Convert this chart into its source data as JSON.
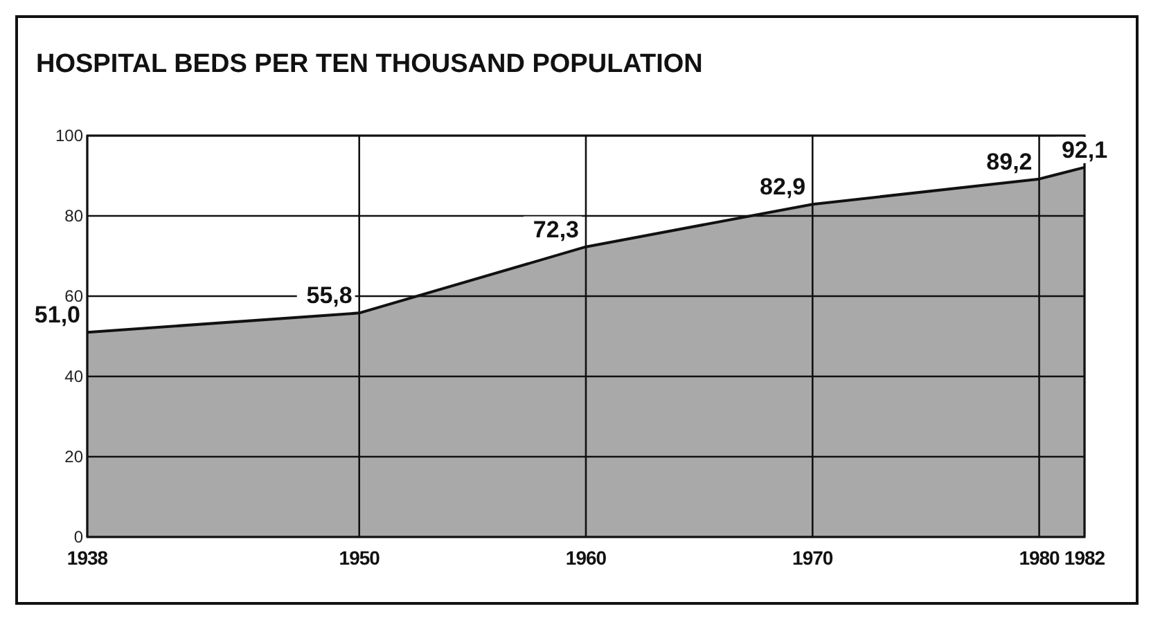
{
  "chart_data": {
    "type": "area",
    "title": "HOSPITAL BEDS PER TEN THOUSAND POPULATION",
    "x": [
      1938,
      1950,
      1960,
      1970,
      1980,
      1982
    ],
    "values": [
      51.0,
      55.8,
      72.3,
      82.9,
      89.2,
      92.1
    ],
    "value_labels": [
      "51,0",
      "55,8",
      "72,3",
      "82,9",
      "89,2",
      "92,1"
    ],
    "color": "#a9a9a9",
    "xlim": [
      1938,
      1982
    ],
    "xticks": [
      1938,
      1950,
      1960,
      1970,
      1980,
      1982
    ],
    "ylim": [
      0,
      100
    ],
    "yticks": [
      0,
      20,
      40,
      60,
      80,
      100
    ],
    "grid": true
  }
}
